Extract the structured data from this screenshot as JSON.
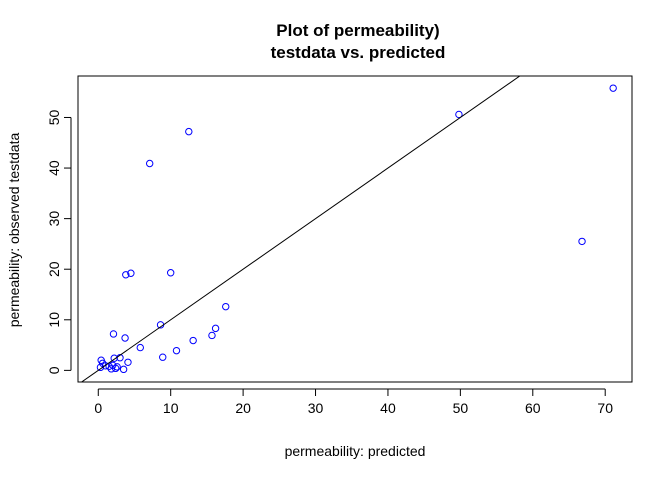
{
  "chart_data": {
    "type": "scatter",
    "title": "Plot of permeability)",
    "subtitle": "testdata vs. predicted",
    "xlabel": "permeability: predicted",
    "ylabel": "permeability: observed testdata",
    "xlim": [
      -2.8,
      73.7
    ],
    "ylim": [
      -2.3,
      58.2
    ],
    "x_ticks": [
      0,
      10,
      20,
      30,
      40,
      50,
      60,
      70
    ],
    "y_ticks": [
      0,
      10,
      20,
      30,
      40,
      50
    ],
    "grid": false,
    "legend": "none",
    "point_color": "#0000ff",
    "line_color": "#000000",
    "reference_line": {
      "intercept": 0,
      "slope": 1
    },
    "points": [
      {
        "x": 0.3,
        "y": 0.6
      },
      {
        "x": 0.4,
        "y": 2.0
      },
      {
        "x": 0.6,
        "y": 1.4
      },
      {
        "x": 1.0,
        "y": 0.9
      },
      {
        "x": 1.5,
        "y": 0.8
      },
      {
        "x": 1.8,
        "y": 0.3
      },
      {
        "x": 2.0,
        "y": 1.0
      },
      {
        "x": 2.1,
        "y": 7.2
      },
      {
        "x": 2.2,
        "y": 2.4
      },
      {
        "x": 2.4,
        "y": 0.4
      },
      {
        "x": 2.6,
        "y": 0.7
      },
      {
        "x": 3.0,
        "y": 2.5
      },
      {
        "x": 3.5,
        "y": 0.2
      },
      {
        "x": 3.7,
        "y": 6.4
      },
      {
        "x": 3.8,
        "y": 18.9
      },
      {
        "x": 4.1,
        "y": 1.6
      },
      {
        "x": 4.5,
        "y": 19.2
      },
      {
        "x": 5.8,
        "y": 4.5
      },
      {
        "x": 7.1,
        "y": 40.9
      },
      {
        "x": 8.6,
        "y": 9.0
      },
      {
        "x": 8.9,
        "y": 2.6
      },
      {
        "x": 10.0,
        "y": 19.3
      },
      {
        "x": 10.8,
        "y": 3.9
      },
      {
        "x": 12.5,
        "y": 47.2
      },
      {
        "x": 13.1,
        "y": 5.9
      },
      {
        "x": 15.7,
        "y": 6.9
      },
      {
        "x": 16.2,
        "y": 8.3
      },
      {
        "x": 17.6,
        "y": 12.6
      },
      {
        "x": 49.8,
        "y": 50.6
      },
      {
        "x": 66.8,
        "y": 25.5
      },
      {
        "x": 71.1,
        "y": 55.8
      }
    ]
  }
}
